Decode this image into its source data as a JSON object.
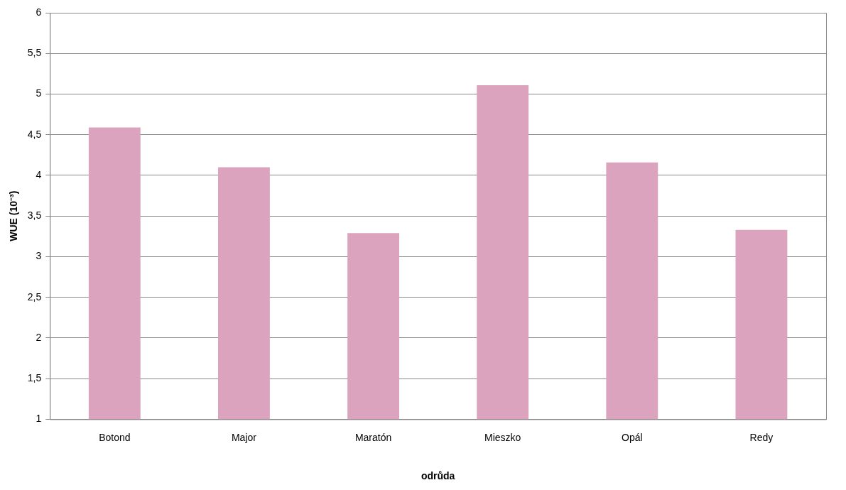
{
  "chart_data": {
    "type": "bar",
    "xlabel": "odrůda",
    "ylabel": "WUE (10⁻³)",
    "categories": [
      "Botond",
      "Major",
      "Maratón",
      "Mieszko",
      "Opál",
      "Redy"
    ],
    "values": [
      4.59,
      4.1,
      3.29,
      5.11,
      4.16,
      3.33
    ],
    "color": "#dba3bd",
    "ylim": [
      1,
      6
    ],
    "yticks": [
      1,
      {
        "value": 1.5,
        "label": "1,5"
      },
      2,
      {
        "value": 2.5,
        "label": "2,5"
      },
      3,
      {
        "value": 3.5,
        "label": "3,5"
      },
      4,
      {
        "value": 4.5,
        "label": "4,5"
      },
      5,
      {
        "value": 5.5,
        "label": "5,5"
      },
      6
    ],
    "grid": "y",
    "legend": false
  }
}
